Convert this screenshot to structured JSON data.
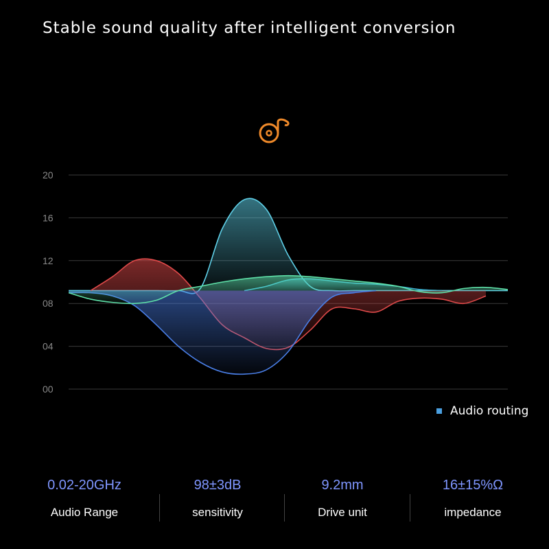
{
  "title": "Stable sound quality after intelligent conversion",
  "logo_icon": "music-note-disc-icon",
  "chart_data": {
    "type": "area",
    "title": "",
    "xlabel": "",
    "ylabel": "",
    "ylim": [
      0,
      20
    ],
    "yticks": [
      "00",
      "04",
      "08",
      "12",
      "16",
      "20"
    ],
    "ytick_values": [
      0,
      4,
      8,
      12,
      16,
      20
    ],
    "grid": true,
    "baseline": 9.2,
    "legend": {
      "label": "Audio routing",
      "color": "#4a9fe0",
      "position": "bottom-right"
    },
    "series": [
      {
        "color": "#5fd0e8",
        "values": [
          9.2,
          9.2,
          9.2,
          9.2,
          9.2,
          9.2,
          9.4,
          15,
          17.7,
          16.8,
          12.5,
          9.6,
          9.2,
          9.2,
          9.2,
          9.2,
          9.2,
          9.2,
          9.2,
          9.2,
          9.2
        ]
      },
      {
        "color": "#3fb8d8",
        "values": [
          null,
          null,
          null,
          null,
          null,
          null,
          null,
          null,
          9.2,
          9.6,
          10.2,
          10.3,
          10.1,
          9.9,
          9.8,
          9.6,
          9.3,
          9.2,
          null,
          null,
          null
        ]
      },
      {
        "color": "#e04a4a",
        "values": [
          null,
          9.2,
          10.5,
          12,
          12,
          10.8,
          8.5,
          6,
          4.8,
          3.8,
          3.9,
          5.5,
          7.5,
          7.5,
          7.2,
          8.2,
          8.5,
          8.4,
          8,
          8.7,
          null
        ]
      },
      {
        "color": "#4a7fe8",
        "values": [
          9,
          9,
          8.7,
          7.8,
          6,
          4,
          2.5,
          1.6,
          1.4,
          1.8,
          3.5,
          6.5,
          8.6,
          9,
          9.2,
          null,
          null,
          null,
          null,
          null,
          null
        ]
      },
      {
        "color": "#5ee0a8",
        "values": [
          9,
          8.4,
          8.1,
          8,
          8.3,
          9.2,
          9.6,
          10,
          10.3,
          10.5,
          10.6,
          10.5,
          10.3,
          10.1,
          9.9,
          9.6,
          9.1,
          9,
          9.4,
          9.5,
          9.3
        ]
      }
    ]
  },
  "specs": [
    {
      "value": "0.02-20GHz",
      "label": "Audio Range"
    },
    {
      "value": "98±3dB",
      "label": "sensitivity"
    },
    {
      "value": "9.2mm",
      "label": "Drive unit"
    },
    {
      "value": "16±15%Ω",
      "label": "impedance"
    }
  ]
}
